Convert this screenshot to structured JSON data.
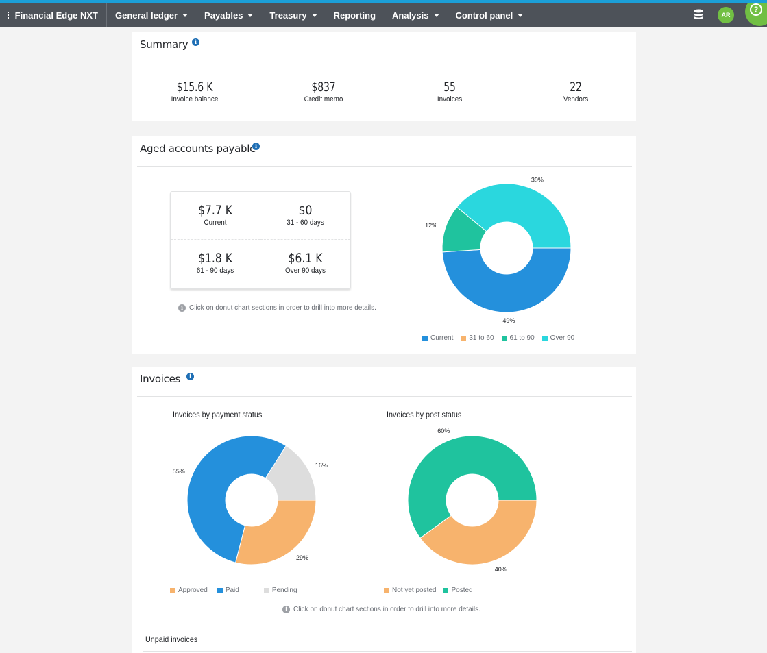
{
  "navbar": {
    "brand": "Financial Edge NXT",
    "items": [
      {
        "label": "General ledger",
        "dropdown": true
      },
      {
        "label": "Payables",
        "dropdown": true
      },
      {
        "label": "Treasury",
        "dropdown": true
      },
      {
        "label": "Reporting",
        "dropdown": false
      },
      {
        "label": "Analysis",
        "dropdown": true
      },
      {
        "label": "Control panel",
        "dropdown": true
      }
    ],
    "avatar_initials": "AR",
    "help_glyph": "?"
  },
  "summary": {
    "title": "Summary",
    "stats": [
      {
        "value": "$15.6 K",
        "label": "Invoice balance"
      },
      {
        "value": "$837",
        "label": "Credit memo"
      },
      {
        "value": "55",
        "label": "Invoices"
      },
      {
        "value": "22",
        "label": "Vendors"
      }
    ]
  },
  "aged": {
    "title": "Aged accounts payable",
    "cells": [
      {
        "value": "$7.7 K",
        "label": "Current"
      },
      {
        "value": "$0",
        "label": "31 - 60 days"
      },
      {
        "value": "$1.8 K",
        "label": "61 - 90 days"
      },
      {
        "value": "$6.1 K",
        "label": "Over 90 days"
      }
    ],
    "hint": "Click on donut chart sections in order to drill into more details."
  },
  "invoices": {
    "title": "Invoices",
    "payment_title": "Invoices by payment status",
    "post_title": "Invoices by post status",
    "hint": "Click on donut chart sections in order to drill into more details.",
    "unpaid_title": "Unpaid invoices"
  },
  "colors": {
    "current": "#2490dc",
    "range_31_60": "#f7b36d",
    "range_61_90": "#1fc39e",
    "over_90": "#2ad7de",
    "approved": "#f7b36d",
    "paid": "#2490dc",
    "pending": "#dddddd",
    "not_yet_posted": "#f7b36d",
    "posted": "#1fc39e"
  },
  "chart_data": [
    {
      "type": "pie",
      "categories": [
        "Current",
        "31 to 60",
        "61 to 90",
        "Over 90"
      ],
      "values": [
        49,
        0,
        12,
        39
      ],
      "labels": [
        "49%",
        "",
        "12%",
        "39%"
      ]
    },
    {
      "type": "pie",
      "title": "Invoices by payment status",
      "categories": [
        "Approved",
        "Paid",
        "Pending"
      ],
      "values": [
        29,
        55,
        16
      ],
      "labels": [
        "29%",
        "55%",
        "16%"
      ]
    },
    {
      "type": "pie",
      "title": "Invoices by post status",
      "categories": [
        "Not yet posted",
        "Posted"
      ],
      "values": [
        40,
        60
      ],
      "labels": [
        "40%",
        "60%"
      ]
    }
  ]
}
